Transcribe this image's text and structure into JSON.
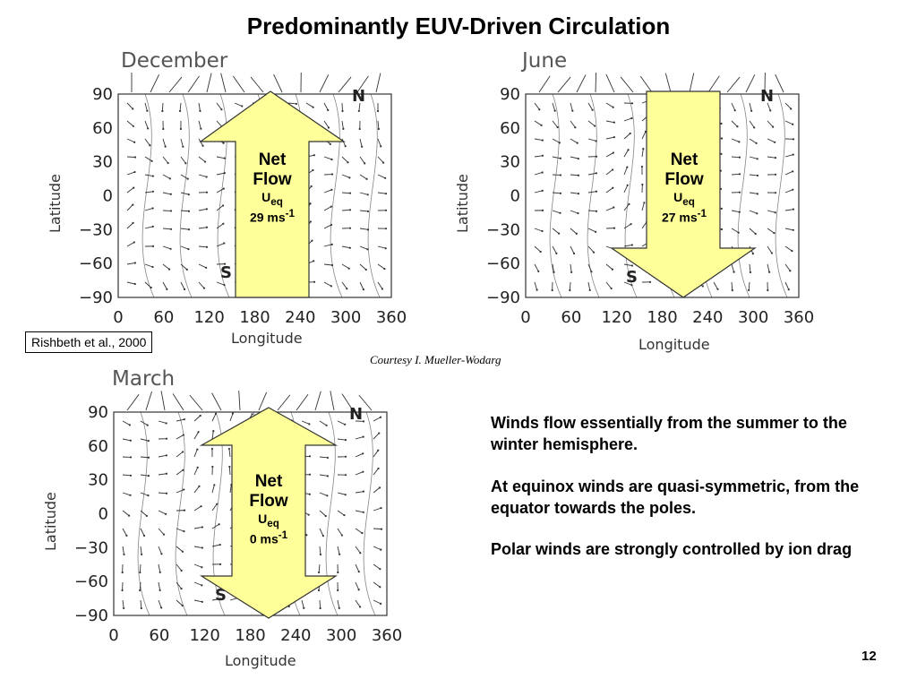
{
  "slide": {
    "title": "Predominantly EUV-Driven Circulation",
    "citation": "Rishbeth et al., 2000",
    "courtesy": "Courtesy I. Mueller-Wodarg",
    "page_number": "12"
  },
  "panels": [
    {
      "id": "december",
      "month": "December",
      "arrow_direction": "up",
      "net": "Net",
      "flow": "Flow",
      "u": "U",
      "u_sub": "eq",
      "speed": "29 ms",
      "speed_sup": "-1"
    },
    {
      "id": "june",
      "month": "June",
      "arrow_direction": "down",
      "net": "Net",
      "flow": "Flow",
      "u": "U",
      "u_sub": "eq",
      "speed": "27 ms",
      "speed_sup": "-1"
    },
    {
      "id": "march",
      "month": "March",
      "arrow_direction": "both",
      "net": "Net",
      "flow": "Flow",
      "u": "U",
      "u_sub": "eq",
      "speed": "0 ms",
      "speed_sup": "-1"
    }
  ],
  "axes": {
    "xlabel": "Longitude",
    "ylabel": "Latitude",
    "x_ticks": [
      "0",
      "60",
      "120",
      "180",
      "240",
      "300",
      "360"
    ],
    "y_ticks": [
      "90",
      "60",
      "30",
      "0",
      "−30",
      "−60",
      "−90"
    ],
    "north": "N",
    "south": "S"
  },
  "notes": [
    "Winds flow essentially from the summer to the winter hemisphere.",
    "At equinox winds are quasi-symmetric, from the equator towards the poles.",
    "Polar winds are strongly controlled by ion drag"
  ],
  "colors": {
    "arrow_fill": "#ffff99",
    "arrow_stroke": "#333333",
    "plot_ink": "#333333"
  }
}
